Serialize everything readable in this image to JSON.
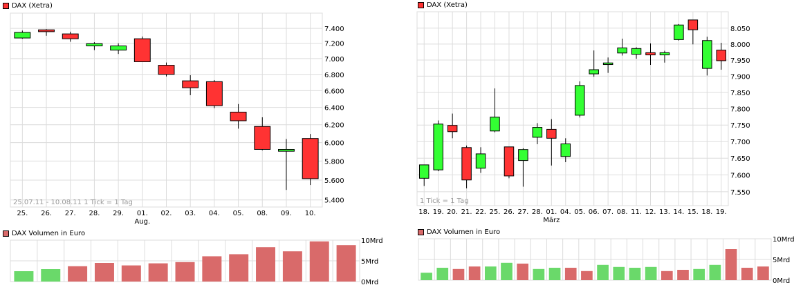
{
  "colors": {
    "up": "#33ff33",
    "down": "#ff3333",
    "vol_up": "#6ad96a",
    "vol_down": "#d96a6a",
    "grid": "#dcdcdc"
  },
  "chart_data": [
    {
      "type": "candlestick",
      "title": "DAX (Xetra)",
      "scale": "log",
      "ylim": [
        5330,
        7610
      ],
      "yticks": [
        7400,
        7200,
        7000,
        6800,
        6600,
        6400,
        6200,
        6000,
        5800,
        5600,
        5400
      ],
      "ytick_labels": [
        "7.400",
        "7.200",
        "7.000",
        "6.800",
        "6.600",
        "6.400",
        "6.200",
        "6.000",
        "5.800",
        "5.600",
        "5.400"
      ],
      "categories": [
        "25.",
        "26.",
        "27.",
        "28.",
        "29.",
        "01.",
        "02.",
        "03.",
        "04.",
        "05.",
        "08.",
        "09.",
        "10."
      ],
      "month_label": {
        "text": "Aug.",
        "at": "01."
      },
      "note": "25.07.11 - 10.08.11    1 Tick = 1 Tag",
      "ohlc": [
        [
          7270,
          7370,
          7260,
          7345
        ],
        [
          7380,
          7390,
          7300,
          7355
        ],
        [
          7325,
          7355,
          7220,
          7260
        ],
        [
          7165,
          7215,
          7110,
          7195
        ],
        [
          7110,
          7200,
          7060,
          7165
        ],
        [
          7260,
          7290,
          6960,
          6960
        ],
        [
          6915,
          6950,
          6775,
          6800
        ],
        [
          6720,
          6790,
          6545,
          6635
        ],
        [
          6710,
          6730,
          6390,
          6420
        ],
        [
          6345,
          6440,
          6155,
          6245
        ],
        [
          6180,
          6285,
          5915,
          5925
        ],
        [
          5905,
          6040,
          5500,
          5925
        ],
        [
          6045,
          6095,
          5550,
          5615
        ]
      ],
      "volume": {
        "title": "DAX Volumen in Euro",
        "unit": "Mrd",
        "ylim": [
          0,
          10
        ],
        "ytick_labels": [
          "10Mrd",
          "5Mrd",
          "0Mrd"
        ],
        "values": [
          2.5,
          3.0,
          3.7,
          4.5,
          3.9,
          4.4,
          4.7,
          6.1,
          6.6,
          8.3,
          7.3,
          9.7,
          8.8
        ],
        "colors": [
          "up",
          "up",
          "down",
          "down",
          "down",
          "down",
          "down",
          "down",
          "down",
          "down",
          "down",
          "down",
          "down"
        ]
      }
    },
    {
      "type": "candlestick",
      "title": "DAX (Xetra)",
      "scale": "log",
      "ylim": [
        7509,
        8102
      ],
      "yticks": [
        8050,
        8000,
        7950,
        7900,
        7850,
        7800,
        7750,
        7700,
        7650,
        7600,
        7550
      ],
      "ytick_labels": [
        "8.050",
        "8.000",
        "7.950",
        "7.900",
        "7.850",
        "7.800",
        "7.750",
        "7.700",
        "7.650",
        "7.600",
        "7.550"
      ],
      "categories": [
        "18.",
        "19.",
        "20.",
        "21.",
        "22.",
        "25.",
        "26.",
        "27.",
        "28.",
        "01.",
        "04.",
        "05.",
        "06.",
        "07.",
        "08.",
        "11.",
        "12.",
        "13.",
        "14.",
        "15.",
        "18.",
        "19."
      ],
      "month_label": {
        "text": "März",
        "at": "01."
      },
      "note": "1 Tick = 1 Tag",
      "ohlc": [
        [
          7590,
          7630,
          7567,
          7630
        ],
        [
          7615,
          7764,
          7611,
          7753
        ],
        [
          7749,
          7785,
          7710,
          7730
        ],
        [
          7682,
          7688,
          7560,
          7585
        ],
        [
          7620,
          7683,
          7606,
          7663
        ],
        [
          7732,
          7862,
          7728,
          7774
        ],
        [
          7684,
          7684,
          7590,
          7597
        ],
        [
          7643,
          7680,
          7565,
          7676
        ],
        [
          7713,
          7756,
          7692,
          7743
        ],
        [
          7737,
          7768,
          7628,
          7710
        ],
        [
          7655,
          7710,
          7638,
          7693
        ],
        [
          7780,
          7884,
          7773,
          7871
        ],
        [
          7907,
          7980,
          7898,
          7920
        ],
        [
          7936,
          7958,
          7910,
          7941
        ],
        [
          7972,
          8017,
          7964,
          7988
        ],
        [
          7968,
          7990,
          7954,
          7986
        ],
        [
          7973,
          8002,
          7935,
          7966
        ],
        [
          7966,
          7979,
          7942,
          7973
        ],
        [
          8014,
          8063,
          8011,
          8060
        ],
        [
          8076,
          8076,
          7999,
          8045
        ],
        [
          7924,
          8023,
          7902,
          8011
        ],
        [
          7981,
          8004,
          7920,
          7948
        ]
      ],
      "volume": {
        "title": "DAX Volumen in Euro",
        "unit": "Mrd",
        "ylim": [
          0,
          10
        ],
        "ytick_labels": [
          "10Mrd",
          "5Mrd",
          "0Mrd"
        ],
        "values": [
          1.8,
          3.0,
          2.7,
          3.3,
          3.3,
          4.2,
          4.0,
          2.7,
          3.0,
          3.0,
          2.2,
          3.7,
          3.2,
          3.0,
          3.2,
          2.2,
          2.5,
          2.7,
          3.7,
          7.5,
          3.0,
          3.3
        ],
        "colors": [
          "up",
          "up",
          "down",
          "down",
          "up",
          "up",
          "down",
          "up",
          "up",
          "down",
          "down",
          "up",
          "up",
          "up",
          "up",
          "down",
          "down",
          "up",
          "up",
          "down",
          "down",
          "down"
        ]
      }
    }
  ]
}
